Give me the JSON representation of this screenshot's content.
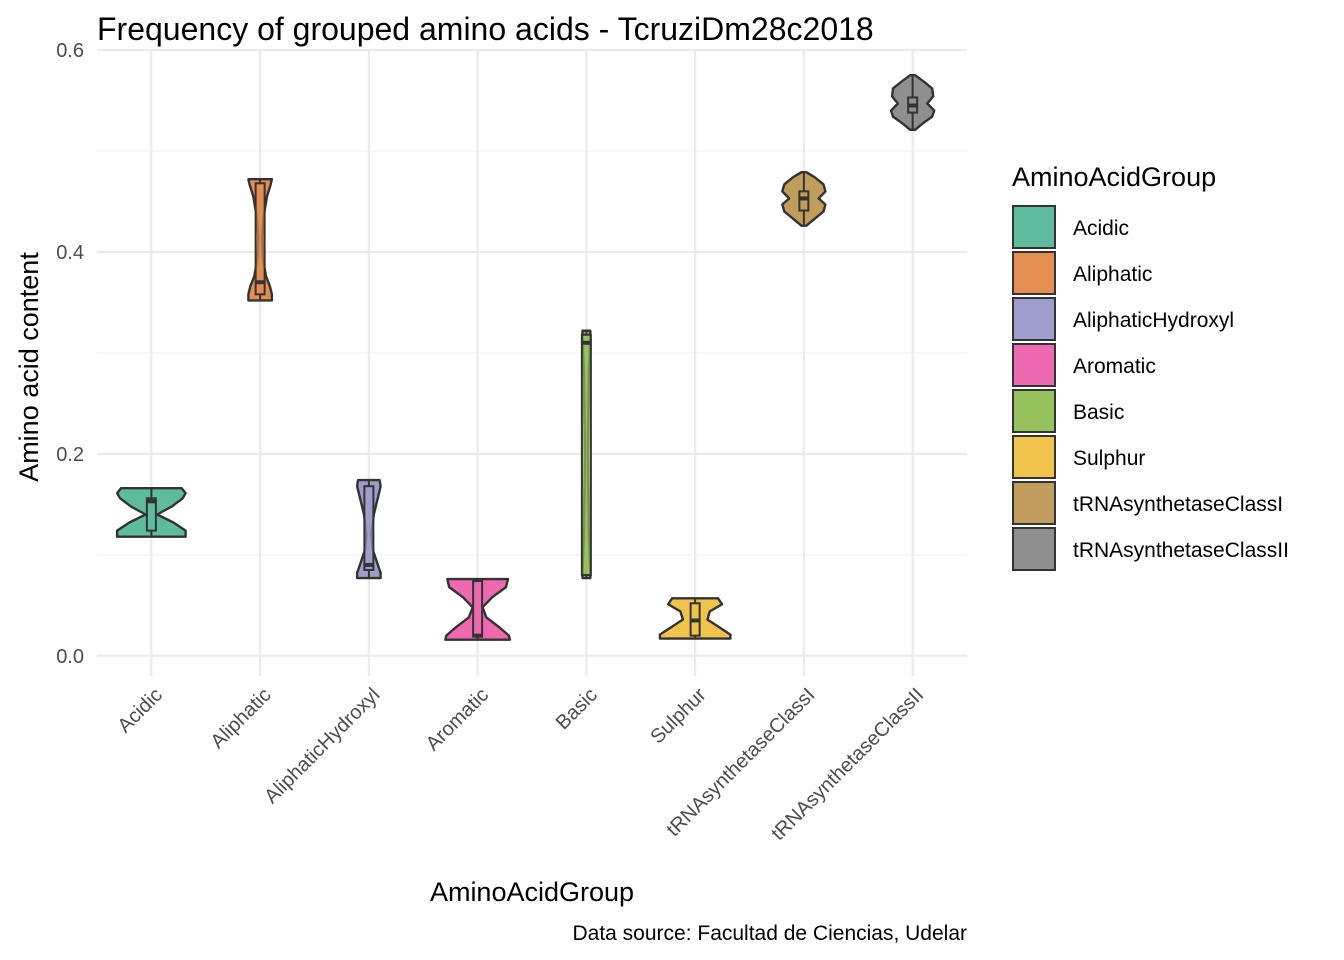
{
  "chart_data": {
    "type": "violin",
    "title": "Frequency of grouped amino acids - TcruziDm28c2018",
    "xlabel": "AminoAcidGroup",
    "ylabel": "Amino acid content",
    "caption": "Data source: Facultad de Ciencias, Udelar",
    "ylim": [
      -0.02,
      0.6
    ],
    "y_ticks": [
      0.0,
      0.2,
      0.4,
      0.6
    ],
    "y_tick_labels": [
      "0.0",
      "0.2",
      "0.4",
      "0.6"
    ],
    "grid": true,
    "legend_position": "right",
    "legend_title": "AminoAcidGroup",
    "categories": [
      "Acidic",
      "Aliphatic",
      "AliphaticHydroxyl",
      "Aromatic",
      "Basic",
      "Sulphur",
      "tRNAsynthetaseClassI",
      "tRNAsynthetaseClassII"
    ],
    "colors": [
      "#5fbb9e",
      "#e58e52",
      "#9f9dcb",
      "#ee69b0",
      "#96c35e",
      "#f0c34d",
      "#c09d5d",
      "#8f8f8f"
    ],
    "series": [
      {
        "category": "Acidic",
        "min": 0.118,
        "q1": 0.124,
        "median": 0.153,
        "q3": 0.156,
        "max": 0.166,
        "density": [
          [
            0.118,
            0.7
          ],
          [
            0.124,
            0.7
          ],
          [
            0.132,
            0.45
          ],
          [
            0.14,
            0.12
          ],
          [
            0.148,
            0.42
          ],
          [
            0.156,
            0.64
          ],
          [
            0.161,
            0.7
          ],
          [
            0.166,
            0.62
          ]
        ]
      },
      {
        "category": "Aliphatic",
        "min": 0.352,
        "q1": 0.358,
        "median": 0.37,
        "q3": 0.468,
        "max": 0.472,
        "density": [
          [
            0.352,
            0.24
          ],
          [
            0.358,
            0.24
          ],
          [
            0.366,
            0.2
          ],
          [
            0.376,
            0.12
          ],
          [
            0.395,
            0.05
          ],
          [
            0.415,
            0.04
          ],
          [
            0.435,
            0.07
          ],
          [
            0.455,
            0.14
          ],
          [
            0.466,
            0.21
          ],
          [
            0.472,
            0.24
          ]
        ]
      },
      {
        "category": "AliphaticHydroxyl",
        "min": 0.077,
        "q1": 0.085,
        "median": 0.09,
        "q3": 0.168,
        "max": 0.174,
        "density": [
          [
            0.077,
            0.24
          ],
          [
            0.082,
            0.24
          ],
          [
            0.092,
            0.17
          ],
          [
            0.105,
            0.08
          ],
          [
            0.12,
            0.05
          ],
          [
            0.14,
            0.1
          ],
          [
            0.16,
            0.2
          ],
          [
            0.168,
            0.24
          ],
          [
            0.174,
            0.22
          ]
        ]
      },
      {
        "category": "Aromatic",
        "min": 0.016,
        "q1": 0.019,
        "median": 0.02,
        "q3": 0.074,
        "max": 0.076,
        "density": [
          [
            0.016,
            0.66
          ],
          [
            0.02,
            0.64
          ],
          [
            0.028,
            0.45
          ],
          [
            0.038,
            0.18
          ],
          [
            0.048,
            0.1
          ],
          [
            0.058,
            0.3
          ],
          [
            0.068,
            0.58
          ],
          [
            0.076,
            0.62
          ]
        ]
      },
      {
        "category": "Basic",
        "min": 0.077,
        "q1": 0.08,
        "median": 0.31,
        "q3": 0.318,
        "max": 0.322,
        "density": [
          [
            0.077,
            0.08
          ],
          [
            0.082,
            0.08
          ],
          [
            0.12,
            0.05
          ],
          [
            0.2,
            0.03
          ],
          [
            0.28,
            0.05
          ],
          [
            0.315,
            0.08
          ],
          [
            0.322,
            0.08
          ]
        ]
      },
      {
        "category": "Sulphur",
        "min": 0.017,
        "q1": 0.02,
        "median": 0.035,
        "q3": 0.052,
        "max": 0.057,
        "density": [
          [
            0.017,
            0.72
          ],
          [
            0.021,
            0.72
          ],
          [
            0.028,
            0.5
          ],
          [
            0.036,
            0.25
          ],
          [
            0.044,
            0.3
          ],
          [
            0.051,
            0.55
          ],
          [
            0.057,
            0.47
          ]
        ]
      },
      {
        "category": "tRNAsynthetaseClassI",
        "min": 0.426,
        "q1": 0.441,
        "median": 0.453,
        "q3": 0.46,
        "max": 0.479,
        "density": [
          [
            0.426,
            0.05
          ],
          [
            0.432,
            0.2
          ],
          [
            0.44,
            0.4
          ],
          [
            0.447,
            0.44
          ],
          [
            0.453,
            0.3
          ],
          [
            0.46,
            0.44
          ],
          [
            0.467,
            0.4
          ],
          [
            0.474,
            0.22
          ],
          [
            0.479,
            0.05
          ]
        ]
      },
      {
        "category": "tRNAsynthetaseClassII",
        "min": 0.521,
        "q1": 0.538,
        "median": 0.545,
        "q3": 0.553,
        "max": 0.575,
        "density": [
          [
            0.521,
            0.05
          ],
          [
            0.527,
            0.2
          ],
          [
            0.534,
            0.4
          ],
          [
            0.54,
            0.44
          ],
          [
            0.547,
            0.3
          ],
          [
            0.554,
            0.42
          ],
          [
            0.562,
            0.4
          ],
          [
            0.569,
            0.22
          ],
          [
            0.575,
            0.05
          ]
        ]
      }
    ]
  }
}
